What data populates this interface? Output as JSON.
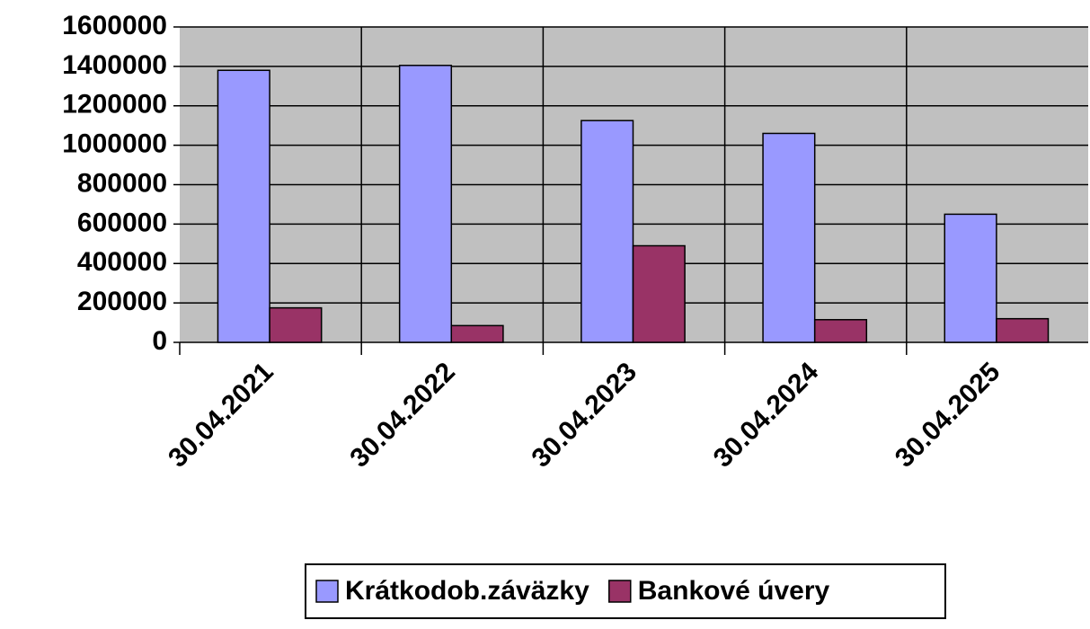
{
  "chart_data": {
    "type": "bar",
    "categories": [
      "30.04.2021",
      "30.04.2022",
      "30.04.2023",
      "30.04.2024",
      "30.04.2025"
    ],
    "series": [
      {
        "name": "Krátkodob.záväzky",
        "color": "#9999ff",
        "values": [
          1380000,
          1405000,
          1125000,
          1060000,
          650000
        ]
      },
      {
        "name": "Bankové úvery",
        "color": "#993366",
        "values": [
          175000,
          85000,
          490000,
          115000,
          120000
        ]
      }
    ],
    "ylim": [
      0,
      1600000
    ],
    "yticks": [
      0,
      200000,
      400000,
      600000,
      800000,
      1000000,
      1200000,
      1400000,
      1600000
    ],
    "grid": true,
    "plot_background": "#c0c0c0"
  }
}
